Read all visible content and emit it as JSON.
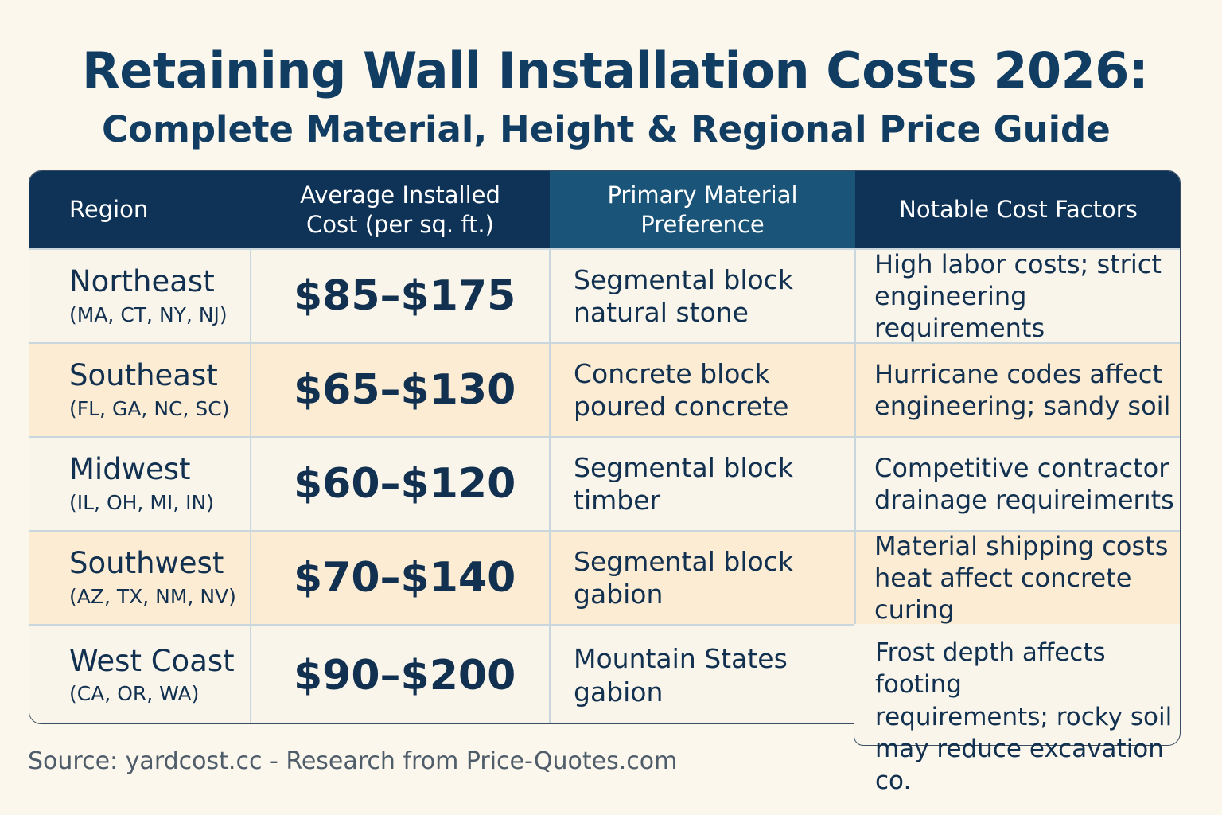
{
  "title": "Retaining Wall Installation Costs 2026:",
  "subtitle": "Complete Material, Height & Regional Price Guide",
  "table": {
    "headers": [
      "Region",
      "Average Installed\nCost (per sq. ft.)",
      "Primary Material\nPreference",
      "Notable Cost Factors"
    ],
    "rows": [
      {
        "region": "Northeast",
        "states": "(MA, CT, NY, NJ)",
        "cost": "$85–$175",
        "material": "Segmental block\nnatural stone",
        "factors": "High labor costs; strict\nengineering requirements"
      },
      {
        "region": "Southeast",
        "states": "(FL, GA, NC, SC)",
        "cost": "$65–$130",
        "material": "Concrete block\npoured concrete",
        "factors": "Hurricane codes affect\nengineering; sandy soil"
      },
      {
        "region": "Midwest",
        "states": "(IL, OH, MI, IN)",
        "cost": "$60–$120",
        "material": "Segmental block\ntimber",
        "factors": "Competitive contractor\ndrainage requireimerıts"
      },
      {
        "region": "Southwest",
        "states": "(AZ, TX, NM, NV)",
        "cost": "$70–$140",
        "material": "Segmental block\ngabion",
        "factors": "Material shipping costs\nheat affect concrete curing"
      },
      {
        "region": "West Coast",
        "states": "(CA, OR, WA)",
        "cost": "$90–$200",
        "material": "Mountain States\ngabion",
        "factors": "Frost depth affects footing\nrequirements; rocky soil\nmay reduce excavation co."
      }
    ]
  },
  "source": "Source: yardcost.cc - Research from Price-Quotes.com",
  "colors": {
    "header_bg": "#0e3357",
    "header_mid_bg": "#1a5478",
    "alt_row_bg": "#fcecd3",
    "page_bg": "#fbf7ec",
    "text": "#12304f"
  }
}
